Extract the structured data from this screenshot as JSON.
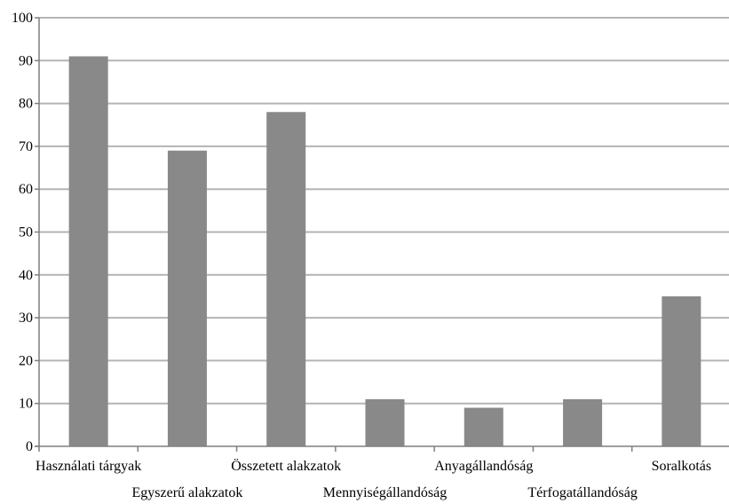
{
  "chart_data": {
    "type": "bar",
    "categories": [
      "Használati tárgyak",
      "Egyszerű alakzatok",
      "Összetett alakzatok",
      "Mennyiségállandóság",
      "Anyagállandóság",
      "Térfogatállandóság",
      "Soralkotás"
    ],
    "values": [
      91,
      69,
      78,
      11,
      9,
      11,
      35
    ],
    "title": "",
    "xlabel": "",
    "ylabel": "",
    "ylim": [
      0,
      100
    ],
    "yticks": [
      0,
      10,
      20,
      30,
      40,
      50,
      60,
      70,
      80,
      90,
      100
    ],
    "grid": true,
    "legend": "none",
    "colors": {
      "bar": "#898989",
      "grid": "#b4b4b4",
      "axis": "#7f7f7f"
    }
  }
}
